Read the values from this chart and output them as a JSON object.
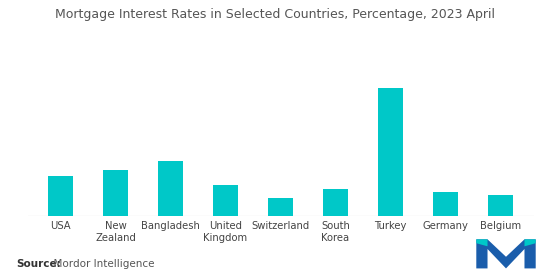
{
  "title": "Mortgage Interest Rates in Selected Countries, Percentage, 2023 April",
  "categories": [
    "USA",
    "New\nZealand",
    "Bangladesh",
    "United\nKingdom",
    "Switzerland",
    "South\nKorea",
    "Turkey",
    "Germany",
    "Belgium"
  ],
  "values": [
    6.5,
    7.5,
    9.0,
    5.0,
    3.0,
    4.5,
    21.0,
    4.0,
    3.5
  ],
  "bar_color": "#00C8C8",
  "background_color": "#ffffff",
  "source_label": "Source:",
  "source_text": "  Mordor Intelligence",
  "title_fontsize": 9.0,
  "label_fontsize": 7.2,
  "source_fontsize": 7.5,
  "logo_color1": "#1a5dab",
  "logo_color2": "#00C8C8"
}
